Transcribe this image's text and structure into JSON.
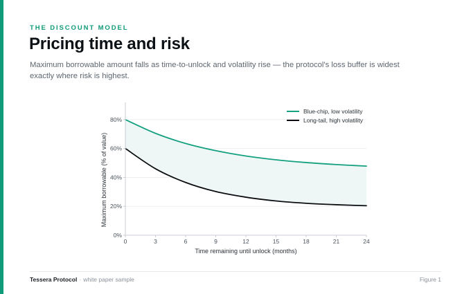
{
  "header": {
    "eyebrow": "THE DISCOUNT MODEL",
    "title": "Pricing time and risk",
    "subtitle": "Maximum borrowable amount falls as time-to-unlock and volatility rise — the protocol's loss buffer is widest exactly where risk is highest."
  },
  "colors": {
    "accent": "#0f9b7a",
    "series_blue_chip": "#13a07f",
    "series_long_tail": "#0b0d10",
    "band_fill": "#eef7f5"
  },
  "chart_data": {
    "type": "line",
    "xlabel": "Time remaining until unlock (months)",
    "ylabel": "Maximum borrowable (% of value)",
    "xlim": [
      0,
      24
    ],
    "ylim": [
      0,
      90
    ],
    "x_ticks": [
      0,
      3,
      6,
      9,
      12,
      15,
      18,
      21,
      24
    ],
    "y_ticks": [
      0,
      20,
      40,
      60,
      80
    ],
    "y_tick_labels": [
      "0%",
      "20%",
      "40%",
      "60%",
      "80%"
    ],
    "grid": "horizontal",
    "legend_position": "top-right",
    "shaded_between_series": true,
    "x": [
      0,
      3,
      6,
      9,
      12,
      15,
      18,
      21,
      24
    ],
    "series": [
      {
        "name": "Blue-chip, low volatility",
        "values": [
          80,
          70.5,
          63.5,
          58.5,
          54.8,
          52.2,
          50.3,
          48.9,
          47.8
        ]
      },
      {
        "name": "Long-tail, high volatility",
        "values": [
          60,
          46,
          36.5,
          30.2,
          26.3,
          23.7,
          22.1,
          21.1,
          20.4
        ]
      }
    ]
  },
  "footer": {
    "brand": "Tessera Protocol",
    "separator": "·",
    "note": "white paper sample",
    "figure": "Figure 1"
  }
}
